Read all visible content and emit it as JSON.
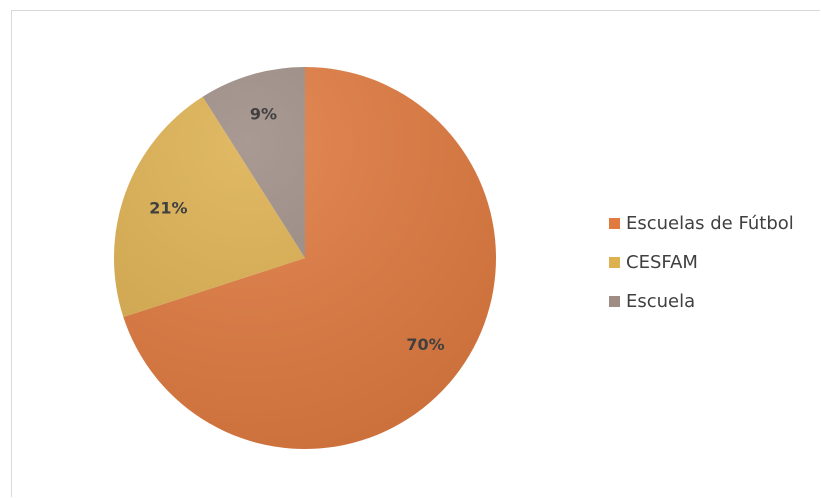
{
  "chart_data": {
    "type": "pie",
    "title": "",
    "categories": [
      "Escuelas de Fútbol",
      "CESFAM",
      "Escuela"
    ],
    "values": [
      70,
      21,
      9
    ],
    "data_labels": [
      "70%",
      "21%",
      "9%"
    ],
    "colors": [
      "#E07A3F",
      "#DDB050",
      "#9E8C85"
    ],
    "legend_position": "right",
    "start_angle_deg": 0,
    "direction": "clockwise"
  }
}
